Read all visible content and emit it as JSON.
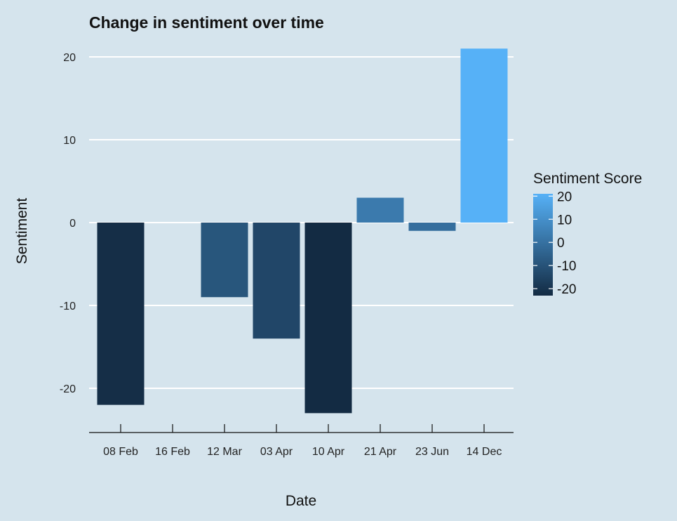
{
  "chart_data": {
    "type": "bar",
    "title": "Change in sentiment over time",
    "xlabel": "Date",
    "ylabel": "Sentiment",
    "categories": [
      "08 Feb",
      "16 Feb",
      "12 Mar",
      "03 Apr",
      "10 Apr",
      "21 Apr",
      "23 Jun",
      "14 Dec"
    ],
    "values": [
      -22,
      0,
      -9,
      -14,
      -23,
      3,
      -1,
      21
    ],
    "ylim": [
      -25,
      21
    ],
    "yticks": [
      -20,
      -10,
      0,
      10,
      20
    ],
    "grid": true,
    "legend": {
      "title": "Sentiment Score",
      "placement": "right",
      "ticks": [
        20,
        10,
        0,
        -10,
        -20
      ],
      "color_low": "#132b43",
      "color_high": "#56b1f7"
    }
  }
}
